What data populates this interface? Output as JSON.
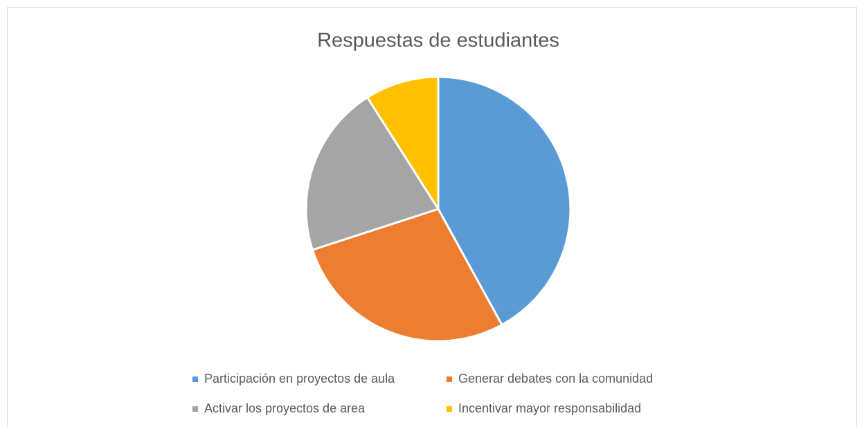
{
  "chart_data": {
    "type": "pie",
    "title": "Respuestas de estudiantes",
    "categories": [
      "Participación en proyectos de aula",
      "Generar debates con la comunidad",
      "Activar los proyectos de area",
      "Incentivar mayor responsabilidad"
    ],
    "values": [
      42,
      28,
      21,
      9
    ],
    "colors": [
      "#5b9bd5",
      "#ed7d31",
      "#a5a5a5",
      "#ffc000"
    ],
    "legend": "bottom"
  }
}
